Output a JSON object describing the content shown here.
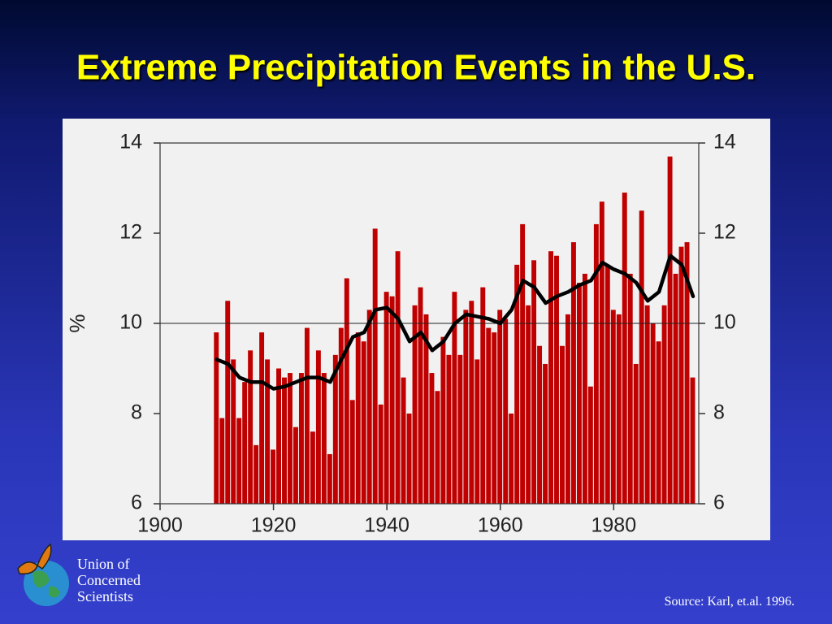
{
  "chart_data": {
    "type": "bar",
    "title": "Extreme Precipitation Events in the U.S.",
    "ylabel": "%",
    "x": [
      1910,
      1911,
      1912,
      1913,
      1914,
      1915,
      1916,
      1917,
      1918,
      1919,
      1920,
      1921,
      1922,
      1923,
      1924,
      1925,
      1926,
      1927,
      1928,
      1929,
      1930,
      1931,
      1932,
      1933,
      1934,
      1935,
      1936,
      1937,
      1938,
      1939,
      1940,
      1941,
      1942,
      1943,
      1944,
      1945,
      1946,
      1947,
      1948,
      1949,
      1950,
      1951,
      1952,
      1953,
      1954,
      1955,
      1956,
      1957,
      1958,
      1959,
      1960,
      1961,
      1962,
      1963,
      1964,
      1965,
      1966,
      1967,
      1968,
      1969,
      1970,
      1971,
      1972,
      1973,
      1974,
      1975,
      1976,
      1977,
      1978,
      1979,
      1980,
      1981,
      1982,
      1983,
      1984,
      1985,
      1986,
      1987,
      1988,
      1989,
      1990,
      1991,
      1992,
      1993,
      1994
    ],
    "values": [
      9.8,
      7.9,
      10.5,
      9.2,
      7.9,
      8.7,
      9.4,
      7.3,
      9.8,
      9.2,
      7.2,
      9.0,
      8.8,
      8.9,
      7.7,
      8.9,
      9.9,
      7.6,
      9.4,
      8.9,
      7.1,
      9.3,
      9.9,
      11.0,
      8.3,
      9.8,
      9.6,
      10.3,
      12.1,
      8.2,
      10.7,
      10.6,
      11.6,
      8.8,
      8.0,
      10.4,
      10.8,
      10.2,
      8.9,
      8.5,
      9.7,
      9.3,
      10.7,
      9.3,
      10.3,
      10.5,
      9.2,
      10.8,
      9.9,
      9.8,
      10.3,
      10.1,
      8.0,
      11.3,
      12.2,
      10.4,
      11.4,
      9.5,
      9.1,
      11.6,
      11.5,
      9.5,
      10.2,
      11.8,
      10.9,
      11.1,
      8.6,
      12.2,
      12.7,
      11.3,
      10.3,
      10.2,
      12.9,
      11.1,
      9.1,
      12.5,
      10.4,
      10.0,
      9.6,
      10.4,
      13.7,
      11.1,
      11.7,
      11.8,
      8.8
    ],
    "color": "#c00000",
    "smooth": {
      "color": "#000000",
      "x": [
        1910,
        1912,
        1914,
        1916,
        1918,
        1920,
        1922,
        1924,
        1926,
        1928,
        1930,
        1932,
        1934,
        1936,
        1938,
        1940,
        1942,
        1944,
        1946,
        1948,
        1950,
        1952,
        1954,
        1956,
        1958,
        1960,
        1962,
        1964,
        1966,
        1968,
        1970,
        1972,
        1974,
        1976,
        1978,
        1980,
        1982,
        1984,
        1986,
        1988,
        1990,
        1992,
        1994
      ],
      "values": [
        9.2,
        9.1,
        8.8,
        8.7,
        8.7,
        8.55,
        8.6,
        8.7,
        8.8,
        8.8,
        8.7,
        9.2,
        9.7,
        9.8,
        10.3,
        10.35,
        10.1,
        9.6,
        9.8,
        9.4,
        9.6,
        10.0,
        10.2,
        10.15,
        10.1,
        10.0,
        10.3,
        10.95,
        10.8,
        10.45,
        10.6,
        10.7,
        10.85,
        10.95,
        11.35,
        11.2,
        11.1,
        10.9,
        10.5,
        10.7,
        11.5,
        11.3,
        10.6
      ]
    },
    "hline": 10,
    "xlim": [
      1900,
      1995
    ],
    "xticks": [
      1900,
      1920,
      1940,
      1960,
      1980
    ],
    "ylim": [
      6,
      14
    ],
    "yticks": [
      6,
      8,
      10,
      12,
      14
    ],
    "y2lim": [
      6,
      14
    ],
    "y2ticks": [
      6,
      8,
      10,
      12,
      14
    ]
  },
  "logo": [
    "Union of",
    "Concerned",
    "Scientists"
  ],
  "source": "Source: Karl, et.al. 1996."
}
